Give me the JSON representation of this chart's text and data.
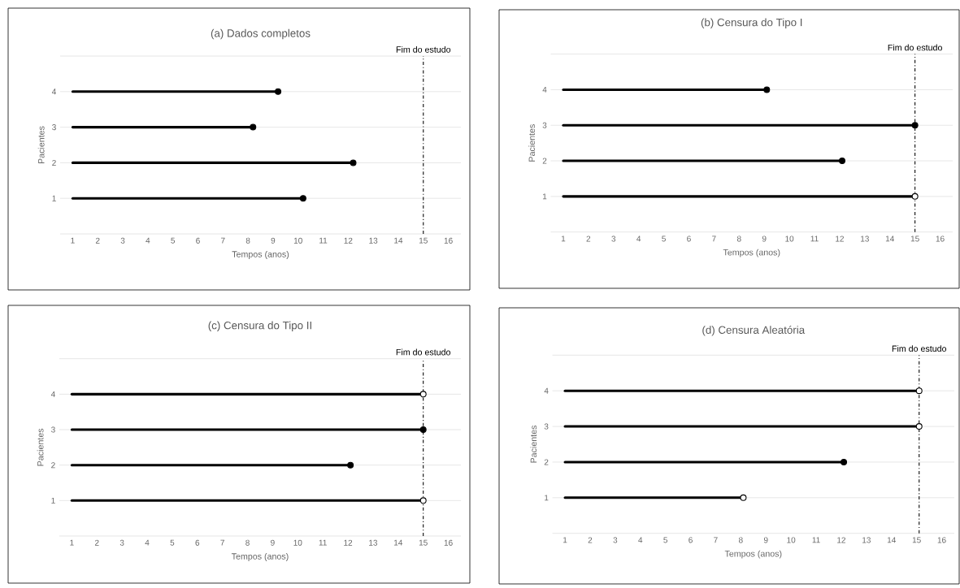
{
  "chart_data": [
    {
      "type": "line",
      "title": "(a) Dados completos",
      "xlabel": "Tempos (anos)",
      "ylabel": "Pacientes",
      "xlim": [
        0.5,
        16.5
      ],
      "xticks": [
        1,
        2,
        3,
        4,
        5,
        6,
        7,
        8,
        9,
        10,
        11,
        12,
        13,
        14,
        15,
        16
      ],
      "ylim": [
        0,
        5
      ],
      "yticks": [
        1,
        2,
        3,
        4
      ],
      "grid": "y",
      "marker": "none",
      "line_style": "solid",
      "ref_lines": [
        {
          "axis": "x",
          "value": 15,
          "label": "Fim do estudo",
          "color": "#000000",
          "line_style": "dashdot"
        }
      ],
      "series": [
        {
          "color": "#000000",
          "x": [
            1,
            10.2
          ],
          "values": [
            1,
            1
          ]
        },
        {
          "color": "#000000",
          "x": [
            1,
            12.2
          ],
          "values": [
            2,
            2
          ]
        },
        {
          "color": "#000000",
          "x": [
            1,
            8.2
          ],
          "values": [
            3,
            3
          ]
        },
        {
          "color": "#000000",
          "x": [
            1,
            9.2
          ],
          "values": [
            4,
            4
          ]
        },
        {
          "type": "scatter",
          "marker": "circle",
          "color": "#000000",
          "x": [
            10.2,
            12.2,
            8.2,
            9.2
          ],
          "values": [
            1,
            2,
            3,
            4
          ]
        }
      ]
    },
    {
      "type": "line",
      "title": "(b) Censura do Tipo I",
      "xlabel": "Tempos (anos)",
      "ylabel": "Pacientes",
      "xlim": [
        0.5,
        16.5
      ],
      "xticks": [
        1,
        2,
        3,
        4,
        5,
        6,
        7,
        8,
        9,
        10,
        11,
        12,
        13,
        14,
        15,
        16
      ],
      "ylim": [
        0,
        5
      ],
      "yticks": [
        1,
        2,
        3,
        4
      ],
      "grid": "y",
      "marker": "none",
      "line_style": "solid",
      "ref_lines": [
        {
          "axis": "x",
          "value": 15,
          "label": "Fim do estudo",
          "color": "#000000",
          "line_style": "dashdot"
        }
      ],
      "series": [
        {
          "color": "#000000",
          "x": [
            1,
            15
          ],
          "values": [
            1,
            1
          ]
        },
        {
          "color": "#000000",
          "x": [
            1,
            12.1
          ],
          "values": [
            2,
            2
          ]
        },
        {
          "color": "#000000",
          "x": [
            1,
            15
          ],
          "values": [
            3,
            3
          ]
        },
        {
          "color": "#000000",
          "x": [
            1,
            9.1
          ],
          "values": [
            4,
            4
          ]
        },
        {
          "type": "scatter",
          "marker": "circle",
          "color": "#000000",
          "x": [
            12.1,
            15,
            9.1
          ],
          "values": [
            2,
            3,
            4
          ]
        },
        {
          "type": "scatter",
          "marker": "circle",
          "color": "#ffffff",
          "x": [
            15
          ],
          "values": [
            1
          ]
        }
      ]
    },
    {
      "type": "line",
      "title": "(c) Censura do Tipo II",
      "xlabel": "Tempos (anos)",
      "ylabel": "Pacientes",
      "xlim": [
        0.5,
        16.5
      ],
      "xticks": [
        1,
        2,
        3,
        4,
        5,
        6,
        7,
        8,
        9,
        10,
        11,
        12,
        13,
        14,
        15,
        16
      ],
      "ylim": [
        0,
        5
      ],
      "yticks": [
        1,
        2,
        3,
        4
      ],
      "grid": "y",
      "marker": "none",
      "line_style": "solid",
      "ref_lines": [
        {
          "axis": "x",
          "value": 15,
          "label": "Fim do estudo",
          "color": "#000000",
          "line_style": "dashdot"
        }
      ],
      "series": [
        {
          "color": "#000000",
          "x": [
            1,
            15
          ],
          "values": [
            1,
            1
          ]
        },
        {
          "color": "#000000",
          "x": [
            1,
            12.1
          ],
          "values": [
            2,
            2
          ]
        },
        {
          "color": "#000000",
          "x": [
            1,
            15
          ],
          "values": [
            3,
            3
          ]
        },
        {
          "color": "#000000",
          "x": [
            1,
            15
          ],
          "values": [
            4,
            4
          ]
        },
        {
          "type": "scatter",
          "marker": "circle",
          "color": "#000000",
          "x": [
            12.1,
            15
          ],
          "values": [
            2,
            3
          ]
        },
        {
          "type": "scatter",
          "marker": "circle",
          "color": "#ffffff",
          "x": [
            15,
            15
          ],
          "values": [
            1,
            4
          ]
        }
      ]
    },
    {
      "type": "line",
      "title": "(d) Censura Aleatória",
      "xlabel": "Tempos (anos)",
      "ylabel": "Pacientes",
      "xlim": [
        0.5,
        16.5
      ],
      "xticks": [
        1,
        2,
        3,
        4,
        5,
        6,
        7,
        8,
        9,
        10,
        11,
        12,
        13,
        14,
        15,
        16
      ],
      "ylim": [
        0,
        5
      ],
      "yticks": [
        1,
        2,
        3,
        4
      ],
      "grid": "y",
      "marker": "none",
      "line_style": "solid",
      "ref_lines": [
        {
          "axis": "x",
          "value": 15.1,
          "label": "Fim do estudo",
          "color": "#000000",
          "line_style": "dashdot"
        }
      ],
      "series": [
        {
          "color": "#000000",
          "x": [
            1,
            8.1
          ],
          "values": [
            1,
            1
          ]
        },
        {
          "color": "#000000",
          "x": [
            1,
            12.1
          ],
          "values": [
            2,
            2
          ]
        },
        {
          "color": "#000000",
          "x": [
            1,
            15.1
          ],
          "values": [
            3,
            3
          ]
        },
        {
          "color": "#000000",
          "x": [
            1,
            15.1
          ],
          "values": [
            4,
            4
          ]
        },
        {
          "type": "scatter",
          "marker": "circle",
          "color": "#000000",
          "x": [
            12.1
          ],
          "values": [
            2
          ]
        },
        {
          "type": "scatter",
          "marker": "circle",
          "color": "#ffffff",
          "x": [
            8.1,
            15.1,
            15.1
          ],
          "values": [
            1,
            3,
            4
          ]
        }
      ]
    }
  ]
}
